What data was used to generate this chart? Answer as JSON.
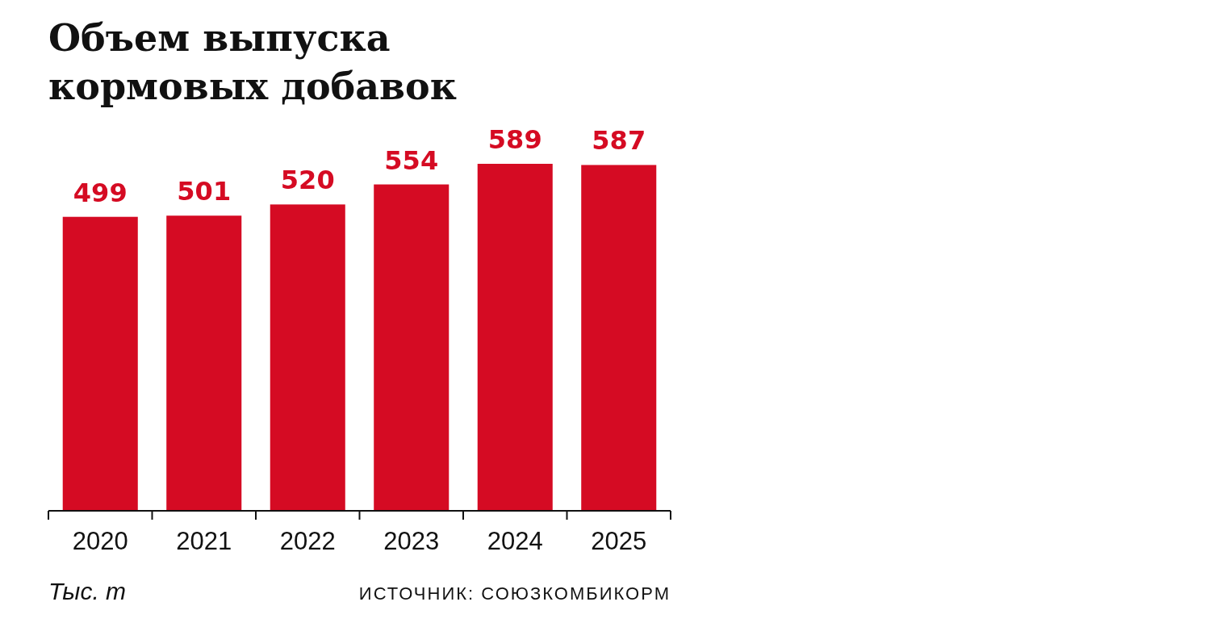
{
  "chart_data": {
    "type": "bar",
    "title": "Объем выпуска\nкормовых добавок",
    "categories": [
      "2020",
      "2021",
      "2022",
      "2023",
      "2024",
      "2025"
    ],
    "values": [
      499,
      501,
      520,
      554,
      589,
      587
    ],
    "color": "#d50b23",
    "data_labels": true,
    "annotations": [
      "Тыс. т",
      "ИСТОЧНИК: СОЮЗКОМБИКОРМ"
    ]
  }
}
